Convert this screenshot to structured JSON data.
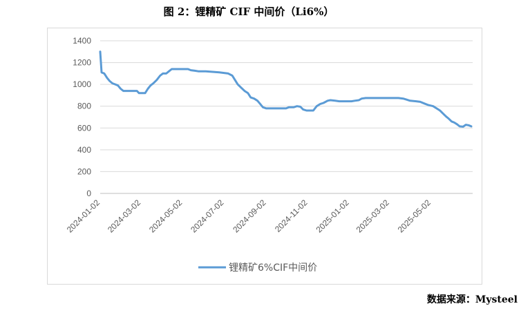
{
  "title": "图 2：锂精矿 CIF 中间价（Li6%）",
  "source": "数据来源：Mysteel",
  "chart_data": {
    "type": "line",
    "title": "图 2：锂精矿 CIF 中间价（Li6%）",
    "xlabel": "",
    "ylabel": "",
    "ylim": [
      0,
      1400
    ],
    "yticks": [
      "0",
      "200",
      "400",
      "600",
      "800",
      "1000",
      "1200",
      "1400"
    ],
    "xticks": [
      "2024-01-02",
      "2024-03-02",
      "2024-05-02",
      "2024-07-02",
      "2024-09-02",
      "2024-11-02",
      "2025-01-02",
      "2025-03-02",
      "2025-05-02"
    ],
    "grid": true,
    "legend_position": "bottom",
    "line_color": "#5b9bd5",
    "series": [
      {
        "name": "锂精矿6%CIF中间价",
        "points": [
          [
            "2024-01-02",
            1300
          ],
          [
            "2024-01-04",
            1110
          ],
          [
            "2024-01-08",
            1100
          ],
          [
            "2024-01-12",
            1060
          ],
          [
            "2024-01-16",
            1030
          ],
          [
            "2024-01-20",
            1010
          ],
          [
            "2024-01-24",
            1000
          ],
          [
            "2024-01-28",
            990
          ],
          [
            "2024-02-01",
            960
          ],
          [
            "2024-02-05",
            940
          ],
          [
            "2024-02-13",
            940
          ],
          [
            "2024-02-20",
            940
          ],
          [
            "2024-02-25",
            940
          ],
          [
            "2024-02-28",
            920
          ],
          [
            "2024-03-08",
            920
          ],
          [
            "2024-03-12",
            960
          ],
          [
            "2024-03-16",
            990
          ],
          [
            "2024-03-20",
            1010
          ],
          [
            "2024-03-25",
            1040
          ],
          [
            "2024-03-30",
            1080
          ],
          [
            "2024-04-03",
            1100
          ],
          [
            "2024-04-08",
            1100
          ],
          [
            "2024-04-12",
            1120
          ],
          [
            "2024-04-16",
            1140
          ],
          [
            "2024-04-25",
            1140
          ],
          [
            "2024-05-05",
            1140
          ],
          [
            "2024-05-10",
            1140
          ],
          [
            "2024-05-14",
            1130
          ],
          [
            "2024-05-20",
            1125
          ],
          [
            "2024-05-25",
            1120
          ],
          [
            "2024-06-05",
            1120
          ],
          [
            "2024-06-15",
            1115
          ],
          [
            "2024-06-25",
            1110
          ],
          [
            "2024-07-02",
            1105
          ],
          [
            "2024-07-08",
            1100
          ],
          [
            "2024-07-14",
            1080
          ],
          [
            "2024-07-18",
            1040
          ],
          [
            "2024-07-22",
            1000
          ],
          [
            "2024-07-27",
            970
          ],
          [
            "2024-08-01",
            940
          ],
          [
            "2024-08-06",
            920
          ],
          [
            "2024-08-10",
            880
          ],
          [
            "2024-08-15",
            870
          ],
          [
            "2024-08-20",
            850
          ],
          [
            "2024-08-24",
            820
          ],
          [
            "2024-08-28",
            790
          ],
          [
            "2024-09-02",
            780
          ],
          [
            "2024-09-10",
            780
          ],
          [
            "2024-09-20",
            780
          ],
          [
            "2024-10-01",
            780
          ],
          [
            "2024-10-05",
            790
          ],
          [
            "2024-10-12",
            790
          ],
          [
            "2024-10-17",
            800
          ],
          [
            "2024-10-22",
            795
          ],
          [
            "2024-10-26",
            770
          ],
          [
            "2024-10-31",
            760
          ],
          [
            "2024-11-10",
            760
          ],
          [
            "2024-11-15",
            800
          ],
          [
            "2024-11-20",
            820
          ],
          [
            "2024-11-25",
            830
          ],
          [
            "2024-12-01",
            850
          ],
          [
            "2024-12-05",
            855
          ],
          [
            "2024-12-12",
            850
          ],
          [
            "2024-12-18",
            845
          ],
          [
            "2024-12-25",
            845
          ],
          [
            "2025-01-05",
            845
          ],
          [
            "2025-01-10",
            850
          ],
          [
            "2025-01-16",
            855
          ],
          [
            "2025-01-20",
            870
          ],
          [
            "2025-01-26",
            875
          ],
          [
            "2025-02-05",
            875
          ],
          [
            "2025-02-20",
            875
          ],
          [
            "2025-03-05",
            875
          ],
          [
            "2025-03-15",
            875
          ],
          [
            "2025-03-22",
            870
          ],
          [
            "2025-03-27",
            860
          ],
          [
            "2025-04-01",
            850
          ],
          [
            "2025-04-10",
            845
          ],
          [
            "2025-04-16",
            840
          ],
          [
            "2025-04-22",
            825
          ],
          [
            "2025-04-28",
            810
          ],
          [
            "2025-05-05",
            800
          ],
          [
            "2025-05-10",
            780
          ],
          [
            "2025-05-15",
            760
          ],
          [
            "2025-05-20",
            730
          ],
          [
            "2025-05-24",
            705
          ],
          [
            "2025-05-28",
            685
          ],
          [
            "2025-06-01",
            660
          ],
          [
            "2025-06-05",
            650
          ],
          [
            "2025-06-09",
            635
          ],
          [
            "2025-06-13",
            615
          ],
          [
            "2025-06-18",
            612
          ],
          [
            "2025-06-22",
            630
          ],
          [
            "2025-06-26",
            625
          ],
          [
            "2025-06-30",
            615
          ]
        ]
      }
    ]
  }
}
